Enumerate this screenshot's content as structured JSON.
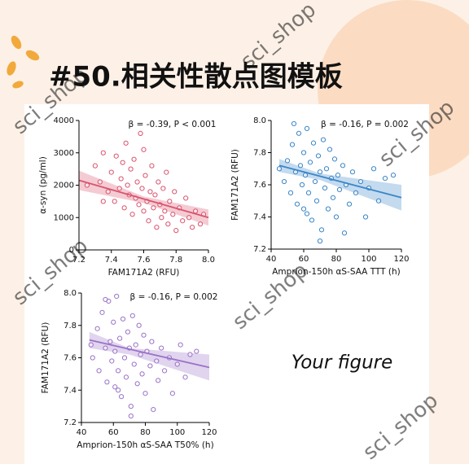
{
  "header": {
    "title": "#50.相关性散点图模板"
  },
  "placeholder": "Your figure",
  "watermark": "sci_shop",
  "chart_data": [
    {
      "type": "scatter",
      "xlabel": "FAM171A2 (RFU)",
      "ylabel": "α-syn (pg/ml)",
      "annotation": "β = -0.39, P < 0.001",
      "color": "#d9546e",
      "xlim": [
        7.2,
        8.0
      ],
      "xticks": [
        7.2,
        7.4,
        7.6,
        7.8,
        {
          "value": 8,
          "label": "8.0"
        }
      ],
      "ylim": [
        0,
        4000
      ],
      "yticks": [
        0,
        1000,
        2000,
        3000,
        4000
      ],
      "x": [
        7.3,
        7.33,
        7.35,
        7.38,
        7.4,
        7.42,
        7.43,
        7.45,
        7.46,
        7.48,
        7.49,
        7.5,
        7.51,
        7.52,
        7.53,
        7.54,
        7.55,
        7.56,
        7.57,
        7.58,
        7.59,
        7.6,
        7.61,
        7.62,
        7.63,
        7.64,
        7.65,
        7.66,
        7.67,
        7.68,
        7.69,
        7.7,
        7.71,
        7.72,
        7.73,
        7.74,
        7.75,
        7.76,
        7.78,
        7.79,
        7.8,
        7.82,
        7.84,
        7.86,
        7.88,
        7.9,
        7.92,
        7.95,
        7.97,
        7.6,
        7.47,
        7.35,
        7.25
      ],
      "values": [
        2600,
        2100,
        3000,
        1800,
        2400,
        1500,
        2900,
        1900,
        2200,
        1300,
        3300,
        2000,
        1700,
        2500,
        1100,
        2800,
        1600,
        2100,
        1400,
        3600,
        1900,
        1200,
        2300,
        1500,
        900,
        1800,
        2600,
        1300,
        1700,
        700,
        2100,
        1400,
        1000,
        1900,
        1200,
        2400,
        800,
        1500,
        1100,
        1800,
        600,
        1300,
        900,
        1600,
        1000,
        700,
        1200,
        800,
        1100,
        3100,
        2700,
        1500,
        2000
      ],
      "fit": {
        "x": [
          7.2,
          8.0
        ],
        "y": [
          2150,
          1000
        ]
      },
      "band": {
        "x": [
          7.2,
          7.6,
          8.0
        ],
        "upper": [
          2450,
          1650,
          1250
        ],
        "lower": [
          1850,
          1450,
          750
        ]
      }
    },
    {
      "type": "scatter",
      "xlabel": "Amprion-150h αS-SAA TTT (h)",
      "ylabel": "FAM171A2 (RFU)",
      "annotation": "β = -0.16, P = 0.002",
      "color": "#3a86c8",
      "xlim": [
        40,
        120
      ],
      "xticks": [
        40,
        60,
        80,
        100,
        120
      ],
      "ylim": [
        7.2,
        8.0
      ],
      "yticks": [
        7.2,
        7.4,
        7.6,
        7.8,
        {
          "value": 8,
          "label": "8.0"
        }
      ],
      "x": [
        48,
        50,
        52,
        53,
        55,
        56,
        57,
        58,
        59,
        60,
        60,
        61,
        62,
        63,
        64,
        65,
        66,
        67,
        68,
        69,
        70,
        71,
        72,
        73,
        74,
        75,
        76,
        77,
        78,
        79,
        80,
        81,
        82,
        84,
        85,
        86,
        88,
        90,
        92,
        95,
        98,
        100,
        103,
        106,
        110,
        115,
        45,
        54,
        70,
        62
      ],
      "values": [
        7.62,
        7.75,
        7.55,
        7.85,
        7.68,
        7.48,
        7.92,
        7.72,
        7.6,
        7.8,
        7.45,
        7.66,
        7.95,
        7.55,
        7.74,
        7.38,
        7.86,
        7.62,
        7.5,
        7.78,
        7.68,
        7.32,
        7.88,
        7.58,
        7.7,
        7.45,
        7.82,
        7.64,
        7.52,
        7.76,
        7.4,
        7.66,
        7.57,
        7.72,
        7.3,
        7.6,
        7.48,
        7.68,
        7.55,
        7.62,
        7.4,
        7.58,
        7.7,
        7.5,
        7.64,
        7.66,
        7.7,
        7.98,
        7.25,
        7.42
      ],
      "fit": {
        "x": [
          45,
          120
        ],
        "y": [
          7.72,
          7.52
        ]
      },
      "band": {
        "x": [
          45,
          70,
          120
        ],
        "upper": [
          7.76,
          7.67,
          7.6
        ],
        "lower": [
          7.68,
          7.63,
          7.44
        ]
      }
    },
    {
      "type": "scatter",
      "xlabel": "Amprion-150h αS-SAA T50% (h)",
      "ylabel": "FAM171A2 (RFU)",
      "annotation": "β = -0.16, P = 0.002",
      "color": "#9a72c8",
      "xlim": [
        40,
        120
      ],
      "xticks": [
        40,
        60,
        80,
        100,
        120
      ],
      "ylim": [
        7.2,
        8.0
      ],
      "yticks": [
        7.2,
        7.4,
        7.6,
        7.8,
        {
          "value": 8,
          "label": "8.0"
        }
      ],
      "x": [
        47,
        50,
        51,
        53,
        55,
        56,
        57,
        58,
        59,
        60,
        61,
        61,
        62,
        63,
        64,
        65,
        66,
        67,
        68,
        69,
        70,
        71,
        72,
        73,
        74,
        75,
        76,
        77,
        78,
        79,
        80,
        81,
        83,
        84,
        85,
        87,
        88,
        90,
        92,
        95,
        97,
        100,
        102,
        105,
        108,
        112,
        46,
        55,
        71,
        63
      ],
      "values": [
        7.6,
        7.78,
        7.52,
        7.88,
        7.66,
        7.45,
        7.95,
        7.7,
        7.58,
        7.82,
        7.42,
        7.64,
        7.98,
        7.52,
        7.72,
        7.36,
        7.84,
        7.6,
        7.48,
        7.76,
        7.66,
        7.3,
        7.86,
        7.56,
        7.68,
        7.44,
        7.8,
        7.62,
        7.5,
        7.74,
        7.38,
        7.64,
        7.55,
        7.7,
        7.28,
        7.58,
        7.46,
        7.66,
        7.52,
        7.6,
        7.38,
        7.56,
        7.68,
        7.48,
        7.62,
        7.64,
        7.68,
        7.96,
        7.24,
        7.4
      ],
      "fit": {
        "x": [
          45,
          120
        ],
        "y": [
          7.71,
          7.54
        ]
      },
      "band": {
        "x": [
          45,
          70,
          120
        ],
        "upper": [
          7.76,
          7.66,
          7.62
        ],
        "lower": [
          7.66,
          7.62,
          7.46
        ]
      }
    }
  ]
}
